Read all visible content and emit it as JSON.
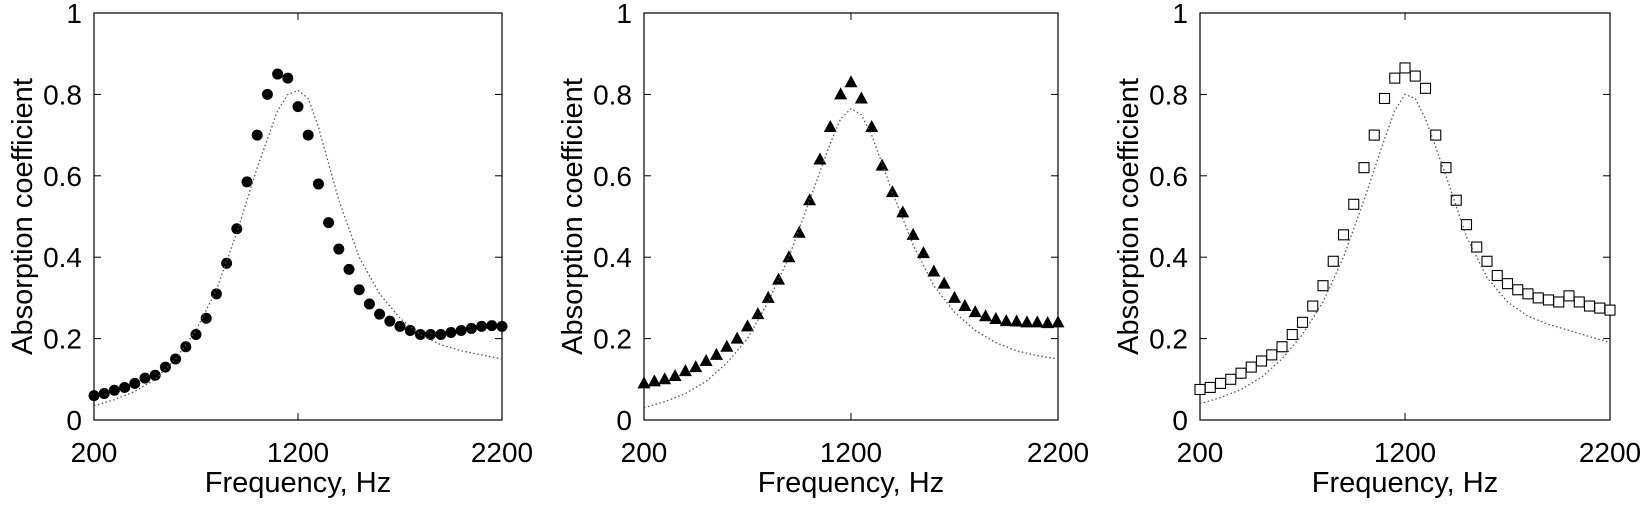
{
  "chart_data": [
    {
      "type": "scatter",
      "marker": "filled-circle",
      "xlabel": "Frequency, Hz",
      "ylabel": "Absorption coefficient",
      "xlim": [
        200,
        2200
      ],
      "ylim": [
        0,
        1
      ],
      "xticks": [
        "200",
        "1200",
        "2200"
      ],
      "yticks": [
        "0",
        "0.2",
        "0.4",
        "0.6",
        "0.8",
        "1"
      ],
      "grid": false,
      "series": [
        {
          "style": "markers",
          "x": [
            200,
            250,
            300,
            350,
            400,
            450,
            500,
            550,
            600,
            650,
            700,
            750,
            800,
            850,
            900,
            950,
            1000,
            1050,
            1100,
            1150,
            1200,
            1250,
            1300,
            1350,
            1400,
            1450,
            1500,
            1550,
            1600,
            1650,
            1700,
            1750,
            1800,
            1850,
            1900,
            1950,
            2000,
            2050,
            2100,
            2150,
            2200
          ],
          "y": [
            0.06,
            0.065,
            0.073,
            0.08,
            0.09,
            0.103,
            0.11,
            0.13,
            0.15,
            0.18,
            0.21,
            0.25,
            0.31,
            0.385,
            0.47,
            0.585,
            0.7,
            0.8,
            0.85,
            0.84,
            0.77,
            0.7,
            0.58,
            0.485,
            0.42,
            0.37,
            0.32,
            0.285,
            0.26,
            0.243,
            0.23,
            0.22,
            0.21,
            0.21,
            0.21,
            0.215,
            0.22,
            0.225,
            0.23,
            0.232,
            0.23
          ]
        },
        {
          "style": "dotted-line",
          "x": [
            200,
            300,
            400,
            500,
            600,
            700,
            800,
            900,
            1000,
            1100,
            1150,
            1200,
            1250,
            1300,
            1400,
            1500,
            1600,
            1700,
            1800,
            1900,
            2000,
            2100,
            2200
          ],
          "y": [
            0.035,
            0.05,
            0.07,
            0.1,
            0.15,
            0.22,
            0.32,
            0.46,
            0.62,
            0.76,
            0.8,
            0.81,
            0.79,
            0.72,
            0.54,
            0.4,
            0.31,
            0.25,
            0.21,
            0.185,
            0.17,
            0.16,
            0.15
          ]
        }
      ]
    },
    {
      "type": "scatter",
      "marker": "filled-triangle",
      "xlabel": "Frequency, Hz",
      "ylabel": "Absorption coefficient",
      "xlim": [
        200,
        2200
      ],
      "ylim": [
        0,
        1
      ],
      "xticks": [
        "200",
        "1200",
        "2200"
      ],
      "yticks": [
        "0",
        "0.2",
        "0.4",
        "0.6",
        "0.8",
        "1"
      ],
      "grid": false,
      "series": [
        {
          "style": "markers",
          "x": [
            200,
            250,
            300,
            350,
            400,
            450,
            500,
            550,
            600,
            650,
            700,
            750,
            800,
            850,
            900,
            950,
            1000,
            1050,
            1100,
            1150,
            1200,
            1250,
            1300,
            1350,
            1400,
            1450,
            1500,
            1550,
            1600,
            1650,
            1700,
            1750,
            1800,
            1850,
            1900,
            1950,
            2000,
            2050,
            2100,
            2150,
            2200
          ],
          "y": [
            0.09,
            0.095,
            0.1,
            0.108,
            0.12,
            0.13,
            0.145,
            0.16,
            0.18,
            0.2,
            0.23,
            0.26,
            0.3,
            0.345,
            0.4,
            0.46,
            0.54,
            0.64,
            0.72,
            0.8,
            0.83,
            0.79,
            0.72,
            0.625,
            0.56,
            0.51,
            0.455,
            0.41,
            0.365,
            0.335,
            0.3,
            0.28,
            0.265,
            0.255,
            0.248,
            0.243,
            0.242,
            0.24,
            0.24,
            0.238,
            0.24
          ]
        },
        {
          "style": "dotted-line",
          "x": [
            200,
            300,
            400,
            500,
            600,
            700,
            800,
            900,
            1000,
            1100,
            1150,
            1200,
            1250,
            1300,
            1400,
            1500,
            1600,
            1700,
            1800,
            1900,
            2000,
            2100,
            2200
          ],
          "y": [
            0.03,
            0.045,
            0.065,
            0.095,
            0.14,
            0.2,
            0.29,
            0.4,
            0.54,
            0.68,
            0.74,
            0.765,
            0.75,
            0.7,
            0.56,
            0.43,
            0.33,
            0.265,
            0.22,
            0.19,
            0.17,
            0.158,
            0.15
          ]
        }
      ]
    },
    {
      "type": "scatter",
      "marker": "open-square",
      "xlabel": "Frequency, Hz",
      "ylabel": "Absorption coefficient",
      "xlim": [
        200,
        2200
      ],
      "ylim": [
        0,
        1
      ],
      "xticks": [
        "200",
        "1200",
        "2200"
      ],
      "yticks": [
        "0",
        "0.2",
        "0.4",
        "0.6",
        "0.8",
        "1"
      ],
      "grid": false,
      "series": [
        {
          "style": "markers",
          "x": [
            200,
            250,
            300,
            350,
            400,
            450,
            500,
            550,
            600,
            650,
            700,
            750,
            800,
            850,
            900,
            950,
            1000,
            1050,
            1100,
            1150,
            1200,
            1250,
            1300,
            1350,
            1400,
            1450,
            1500,
            1550,
            1600,
            1650,
            1700,
            1750,
            1800,
            1850,
            1900,
            1950,
            2000,
            2050,
            2100,
            2150,
            2200
          ],
          "y": [
            0.075,
            0.08,
            0.09,
            0.1,
            0.115,
            0.13,
            0.145,
            0.16,
            0.18,
            0.21,
            0.24,
            0.28,
            0.33,
            0.39,
            0.455,
            0.53,
            0.62,
            0.7,
            0.79,
            0.84,
            0.865,
            0.845,
            0.815,
            0.7,
            0.62,
            0.54,
            0.48,
            0.425,
            0.39,
            0.355,
            0.335,
            0.32,
            0.31,
            0.3,
            0.295,
            0.29,
            0.305,
            0.29,
            0.28,
            0.275,
            0.27
          ]
        },
        {
          "style": "dotted-line",
          "x": [
            200,
            300,
            400,
            500,
            600,
            700,
            800,
            900,
            1000,
            1100,
            1150,
            1200,
            1250,
            1300,
            1400,
            1500,
            1600,
            1700,
            1800,
            1900,
            2000,
            2100,
            2200
          ],
          "y": [
            0.04,
            0.055,
            0.075,
            0.105,
            0.15,
            0.21,
            0.29,
            0.4,
            0.54,
            0.69,
            0.76,
            0.8,
            0.79,
            0.74,
            0.6,
            0.45,
            0.35,
            0.29,
            0.255,
            0.235,
            0.22,
            0.205,
            0.19
          ]
        }
      ]
    }
  ]
}
